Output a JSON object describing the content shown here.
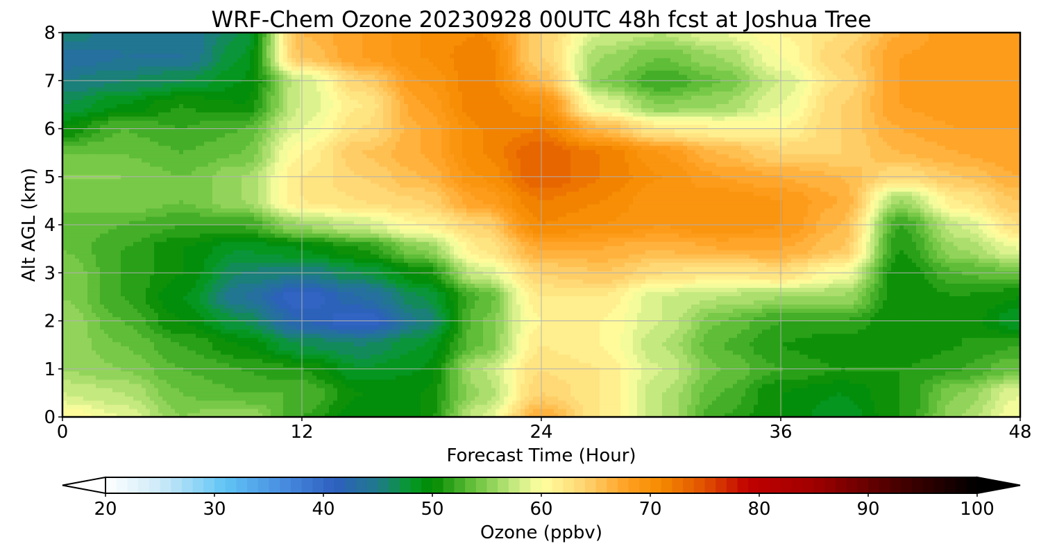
{
  "chart_data": {
    "type": "heatmap",
    "title": "WRF-Chem Ozone  20230928 00UTC 48h fcst at Joshua Tree",
    "xlabel": "Forecast Time (Hour)",
    "ylabel": "Alt AGL (km)",
    "x_ticks": [
      0,
      12,
      24,
      36,
      48
    ],
    "y_ticks": [
      0,
      1,
      2,
      3,
      4,
      5,
      6,
      7,
      8
    ],
    "xlim": [
      0,
      48
    ],
    "ylim": [
      0,
      8
    ],
    "grid": true,
    "x": [
      0,
      3,
      6,
      9,
      12,
      15,
      18,
      21,
      24,
      27,
      30,
      33,
      36,
      39,
      42,
      45,
      48
    ],
    "y": [
      0,
      0.5,
      1,
      1.5,
      2,
      2.5,
      3,
      3.5,
      4,
      4.5,
      5,
      5.5,
      6,
      6.5,
      7,
      7.5,
      8
    ],
    "z": [
      [
        61,
        59,
        55,
        56,
        52,
        49,
        50,
        58,
        67,
        62,
        57,
        52,
        50,
        48,
        51,
        56,
        60
      ],
      [
        58,
        57,
        54,
        53,
        53,
        50,
        50,
        56,
        64,
        62,
        57,
        53,
        50,
        49,
        51,
        55,
        59
      ],
      [
        56,
        55,
        53,
        52,
        51,
        48,
        49,
        57,
        63,
        62,
        58,
        54,
        52,
        51,
        51,
        52,
        54
      ],
      [
        56,
        54,
        52,
        50,
        47,
        46,
        48,
        54,
        62,
        61,
        57,
        53,
        51,
        50,
        50,
        51,
        52
      ],
      [
        56,
        53,
        50,
        47,
        42,
        40,
        45,
        54,
        61,
        61,
        58,
        54,
        52,
        52,
        50,
        51,
        48
      ],
      [
        55,
        52,
        49,
        44,
        40,
        43,
        47,
        53,
        62,
        62,
        58,
        57,
        56,
        56,
        50,
        51,
        50
      ],
      [
        55,
        52,
        50,
        46,
        45,
        47,
        50,
        58,
        64,
        65,
        63,
        62,
        63,
        60,
        50,
        53,
        54
      ],
      [
        54,
        52,
        50,
        48,
        49,
        51,
        55,
        62,
        67,
        67,
        66,
        67,
        67,
        65,
        51,
        56,
        59
      ],
      [
        54,
        53,
        52,
        52,
        56,
        58,
        61,
        64,
        71,
        70,
        69,
        70,
        69,
        66,
        52,
        58,
        63
      ],
      [
        54,
        55,
        54,
        56,
        62,
        63,
        64,
        68,
        72,
        71,
        69,
        70,
        69,
        67,
        56,
        62,
        65
      ],
      [
        55,
        55,
        54,
        56,
        62,
        64,
        66,
        70,
        74,
        72,
        70,
        68,
        67,
        66,
        63,
        65,
        67
      ],
      [
        54,
        54,
        53,
        54,
        61,
        65,
        67,
        71,
        74,
        72,
        69,
        66,
        64,
        64,
        66,
        67,
        68
      ],
      [
        50,
        53,
        52,
        53,
        59,
        63,
        67,
        71,
        72,
        66,
        62,
        61,
        61,
        64,
        67,
        68,
        68
      ],
      [
        47,
        49,
        51,
        50,
        58,
        62,
        68,
        72,
        70,
        59,
        55,
        56,
        59,
        64,
        68,
        69,
        68
      ],
      [
        45,
        46,
        47,
        49,
        58,
        64,
        69,
        72,
        66,
        55,
        52,
        54,
        58,
        63,
        68,
        69,
        68
      ],
      [
        43,
        44,
        44,
        48,
        65,
        68,
        70,
        72,
        64,
        56,
        54,
        56,
        60,
        64,
        68,
        69,
        68
      ],
      [
        46,
        44,
        44,
        47,
        66,
        68,
        70,
        71,
        64,
        58,
        57,
        59,
        61,
        63,
        67,
        69,
        68
      ]
    ],
    "colorbar": {
      "label": "Ozone  (ppbv)",
      "ticks": [
        20,
        30,
        40,
        50,
        60,
        70,
        80,
        90,
        100
      ],
      "min": 20,
      "max": 100,
      "step": 1,
      "extend": "both",
      "stops": [
        {
          "v": 20,
          "c": "#ffffff"
        },
        {
          "v": 25,
          "c": "#cdeaf8"
        },
        {
          "v": 31,
          "c": "#5fc4f4"
        },
        {
          "v": 36,
          "c": "#4a90e2"
        },
        {
          "v": 41,
          "c": "#2e5fc0"
        },
        {
          "v": 45,
          "c": "#1f7a8a"
        },
        {
          "v": 48,
          "c": "#079a2a"
        },
        {
          "v": 50,
          "c": "#008a00"
        },
        {
          "v": 54,
          "c": "#6cc440"
        },
        {
          "v": 58,
          "c": "#d0ee88"
        },
        {
          "v": 60,
          "c": "#ffffa0"
        },
        {
          "v": 64,
          "c": "#ffd370"
        },
        {
          "v": 68,
          "c": "#ffa020"
        },
        {
          "v": 71,
          "c": "#f58a00"
        },
        {
          "v": 75,
          "c": "#e05000"
        },
        {
          "v": 79,
          "c": "#c00000"
        },
        {
          "v": 85,
          "c": "#a00000"
        },
        {
          "v": 92,
          "c": "#500000"
        },
        {
          "v": 100,
          "c": "#000000"
        }
      ]
    }
  }
}
